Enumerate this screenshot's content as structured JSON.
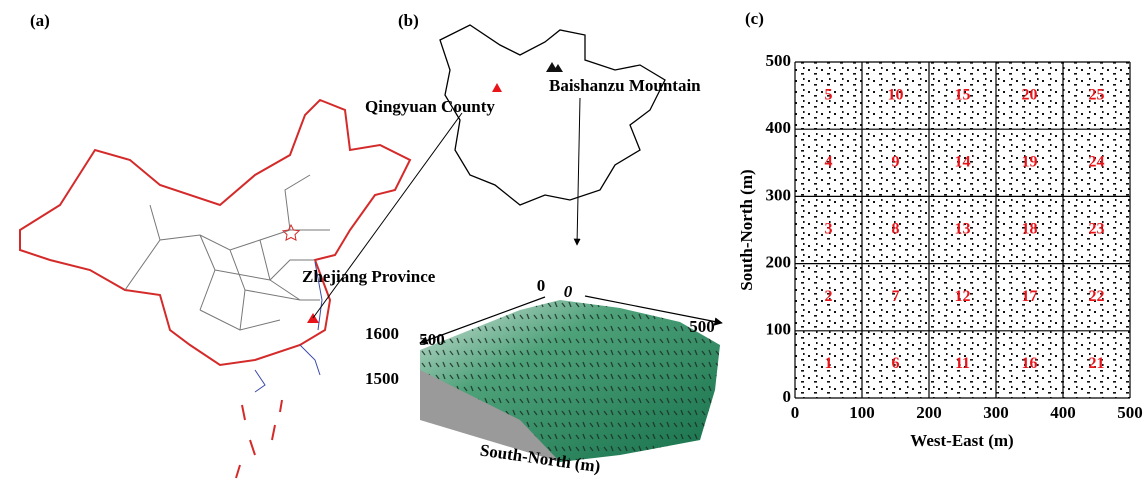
{
  "panel_a": {
    "label": "(a)",
    "annotation": "Zhejiang Province"
  },
  "panel_b": {
    "label": "(b)",
    "county_label": "Qingyuan County",
    "mountain_label": "Baishanzu Mountain",
    "surface": {
      "axis_label": "South-North (m)",
      "left_origin": 0,
      "right_origin": 0,
      "left_end": 500,
      "right_end": 500,
      "elevation_ticks": [
        1600,
        1500
      ]
    }
  },
  "chart_data": {
    "type": "plot-grid",
    "label": "(c)",
    "xlabel": "West-East (m)",
    "ylabel": "South-North (m)",
    "xlim": [
      0,
      500
    ],
    "ylim": [
      0,
      500
    ],
    "xticks": [
      0,
      100,
      200,
      300,
      400,
      500
    ],
    "yticks": [
      0,
      100,
      200,
      300,
      400,
      500
    ],
    "plot_labels": [
      1,
      2,
      3,
      4,
      5,
      6,
      7,
      8,
      9,
      10,
      11,
      12,
      13,
      14,
      15,
      16,
      17,
      18,
      19,
      20,
      21,
      22,
      23,
      24,
      25
    ]
  }
}
